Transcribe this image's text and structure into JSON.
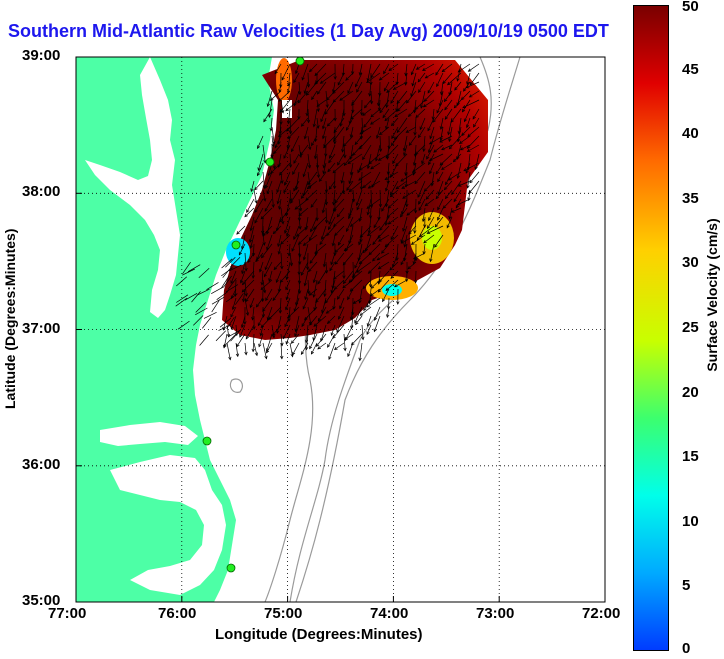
{
  "title": "Southern Mid-Atlantic Raw Velocities (1 Day Avg) 2009/10/19 0500 EDT",
  "x_axis": {
    "label": "Longitude (Degrees:Minutes)",
    "ticks": [
      "77:00",
      "76:00",
      "75:00",
      "74:00",
      "73:00",
      "72:00"
    ]
  },
  "y_axis": {
    "label": "Latitude (Degrees:Minutes)",
    "ticks": [
      "39:00",
      "38:00",
      "37:00",
      "36:00",
      "35:00"
    ]
  },
  "colorbar": {
    "label": "Surface Velocity (cm/s)",
    "ticks": [
      "50",
      "45",
      "40",
      "35",
      "30",
      "25",
      "20",
      "15",
      "10",
      "5",
      "0"
    ],
    "range": [
      0,
      50
    ],
    "colors": [
      "#003cff",
      "#00ffea",
      "#c8ff00",
      "#ffd000",
      "#ff6a00",
      "#e00000",
      "#7a0000"
    ]
  },
  "colors": {
    "land": "#4dffa6",
    "water": "#ffffff",
    "bathymetry": "#9a9a9a",
    "station": "#22ee22",
    "title": "#1d17ee"
  },
  "map": {
    "lon_range": [
      -77,
      -72
    ],
    "lat_range": [
      35,
      39
    ],
    "grid": "dotted",
    "stations": 5,
    "vector_color": "#000000"
  }
}
